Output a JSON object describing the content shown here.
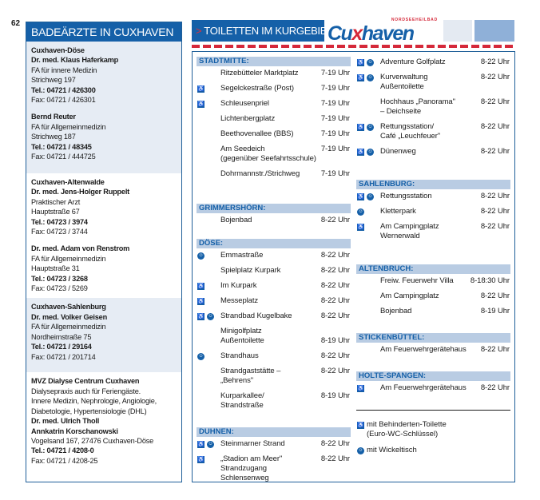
{
  "page_number": "62",
  "left_panel": {
    "title": "BADEÄRZTE IN CUXHAVEN",
    "groups": [
      {
        "shade": true,
        "blocks": [
          [
            {
              "t": "Cuxhaven-Döse",
              "b": true
            },
            {
              "t": "Dr. med. Klaus Haferkamp",
              "b": true
            },
            {
              "t": "FA für innere Medizin"
            },
            {
              "t": "Strichweg 197"
            },
            {
              "t": "Tel.: 04721 / 426300",
              "b": true
            },
            {
              "t": "Fax: 04721 / 426301"
            }
          ],
          [
            {
              "t": "Bernd Reuter",
              "b": true
            },
            {
              "t": "FA für Allgemeinmedizin"
            },
            {
              "t": "Strichweg 187"
            },
            {
              "t": "Tel.: 04721 / 48345",
              "b": true
            },
            {
              "t": "Fax: 04721 / 444725"
            }
          ]
        ]
      },
      {
        "shade": false,
        "blocks": [
          [
            {
              "t": "Cuxhaven-Altenwalde",
              "b": true
            },
            {
              "t": "Dr. med. Jens-Holger Ruppelt",
              "b": true
            },
            {
              "t": "Praktischer Arzt"
            },
            {
              "t": "Hauptstraße 67"
            },
            {
              "t": "Tel.: 04723 / 3974",
              "b": true
            },
            {
              "t": "Fax: 04723 / 3744"
            }
          ],
          [
            {
              "t": "Dr. med. Adam von Renstrom",
              "b": true
            },
            {
              "t": "FA für Allgemeinmedizin"
            },
            {
              "t": "Hauptstraße 31"
            },
            {
              "t": "Tel.: 04723 / 3268",
              "b": true
            },
            {
              "t": "Fax: 04723 / 5269"
            }
          ]
        ]
      },
      {
        "shade": true,
        "blocks": [
          [
            {
              "t": "Cuxhaven-Sahlenburg",
              "b": true
            },
            {
              "t": "Dr. med. Volker Geisen",
              "b": true
            },
            {
              "t": "FA für Allgemeinmedizin"
            },
            {
              "t": "Nordheimstraße 75"
            },
            {
              "t": "Tel.: 04721 / 29164",
              "b": true
            },
            {
              "t": "Fax: 04721 / 201714"
            }
          ]
        ]
      },
      {
        "shade": false,
        "blocks": [
          [
            {
              "t": "MVZ Dialyse Centrum Cuxhaven",
              "b": true
            },
            {
              "t": "Dialysepraxis auch für Feriengäste."
            },
            {
              "t": "Innere Medizin, Nephrologie, Angiologie,"
            },
            {
              "t": "Diabetologie, Hypertensiologie (DHL)"
            },
            {
              "t": "Dr. med. Ulrich Tholl",
              "b": true
            },
            {
              "t": "Annkatrin Korschanowski",
              "b": true
            },
            {
              "t": "Vogelsand 167, 27476 Cuxhaven-Döse"
            },
            {
              "t": "Tel.: 04721 / 4208-0",
              "b": true
            },
            {
              "t": "Fax: 04721 / 4208-25"
            }
          ]
        ]
      }
    ]
  },
  "right_panel": {
    "title_arrow": ">",
    "title": "TOILETTEN IM KURGEBIET",
    "logo_small": "NORDSEEHEILBAD",
    "logo_main_a": "Cu",
    "logo_main_x": "x",
    "logo_main_b": "haven",
    "colors": {
      "brand_blue": "#1560a8",
      "accent_red": "#d5293a",
      "section_bg": "#b9cce3"
    },
    "columns": [
      [
        {
          "name": "STADTMITTE:",
          "rows": [
            {
              "n": "Ritzebütteler Marktplatz",
              "t": "7-19 Uhr",
              "wc": false,
              "baby": false
            },
            {
              "n": "Segelckestraße (Post)",
              "t": "7-19 Uhr",
              "wc": true,
              "baby": false
            },
            {
              "n": "Schleusenpriel",
              "t": "7-19 Uhr",
              "wc": true,
              "baby": false
            },
            {
              "n": "Lichtenbergplatz",
              "t": "7-19 Uhr",
              "wc": false,
              "baby": false
            },
            {
              "n": "Beethovenallee (BBS)",
              "t": "7-19 Uhr",
              "wc": false,
              "baby": false
            },
            {
              "n": "Am Seedeich\n(gegenüber Seefahrtsschule)",
              "t": "7-19 Uhr",
              "wc": false,
              "baby": false
            },
            {
              "n": "Dohrmannstr./Strichweg",
              "t": "7-19 Uhr",
              "wc": false,
              "baby": false
            }
          ]
        },
        {
          "name": "GRIMMERSHÖRN:",
          "rows": [
            {
              "n": "Bojenbad",
              "t": "8-22 Uhr",
              "wc": false,
              "baby": false
            }
          ]
        },
        {
          "name": "DÖSE:",
          "rows": [
            {
              "n": "Emmastraße",
              "t": "8-22 Uhr",
              "wc": false,
              "baby": true
            },
            {
              "n": "Spielplatz Kurpark",
              "t": "8-22 Uhr",
              "wc": false,
              "baby": false
            },
            {
              "n": "Im Kurpark",
              "t": "8-22 Uhr",
              "wc": true,
              "baby": false
            },
            {
              "n": "Messeplatz",
              "t": "8-22 Uhr",
              "wc": true,
              "baby": false
            },
            {
              "n": "Strandbad Kugelbake",
              "t": "8-22 Uhr",
              "wc": true,
              "baby": true
            },
            {
              "n": "Minigolfplatz\nAußentoilette",
              "t": "8-19 Uhr",
              "wc": false,
              "baby": false,
              "bottom": true
            },
            {
              "n": "Strandhaus",
              "t": "8-22 Uhr",
              "wc": false,
              "baby": true
            },
            {
              "n": "Strandgaststätte –\n„Behrens\"",
              "t": "8-22 Uhr",
              "wc": false,
              "baby": false
            },
            {
              "n": "Kurparkallee/\nStrandstraße",
              "t": "8-19 Uhr",
              "wc": false,
              "baby": false
            }
          ]
        },
        {
          "name": "DUHNEN:",
          "rows": [
            {
              "n": "Steinmarner Strand",
              "t": "8-22 Uhr",
              "wc": true,
              "baby": true
            },
            {
              "n": "„Stadion am Meer\"\nStrandzugang\nSchlensenweg",
              "t": "8-22 Uhr",
              "wc": true,
              "baby": false
            }
          ]
        }
      ],
      [
        {
          "name": "",
          "rows": [
            {
              "n": "Adventure Golfplatz",
              "t": "8-22 Uhr",
              "wc": true,
              "baby": true
            },
            {
              "n": "Kurverwaltung\nAußentoilette",
              "t": "8-22 Uhr",
              "wc": true,
              "baby": true
            },
            {
              "n": "Hochhaus „Panorama\"\n– Deichseite",
              "t": "8-22 Uhr",
              "wc": false,
              "baby": false
            },
            {
              "n": "Rettungsstation/\nCafé „Leuchfeuer\"",
              "t": "8-22 Uhr",
              "wc": true,
              "baby": true
            },
            {
              "n": "Dünenweg",
              "t": "8-22 Uhr",
              "wc": true,
              "baby": true
            }
          ]
        },
        {
          "name": "SAHLENBURG:",
          "rows": [
            {
              "n": "Rettungsstation",
              "t": "8-22 Uhr",
              "wc": true,
              "baby": true
            },
            {
              "n": "Kletterpark",
              "t": "8-22 Uhr",
              "wc": false,
              "baby": true
            },
            {
              "n": "Am Campingplatz\nWernerwald",
              "t": "8-22 Uhr",
              "wc": true,
              "baby": false
            }
          ]
        },
        {
          "name": "ALTENBRUCH:",
          "rows": [
            {
              "n": "Freiw. Feuerwehr Villa",
              "t": "8-18:30 Uhr",
              "wc": false,
              "baby": false
            },
            {
              "n": "Am Campingplatz",
              "t": "8-22 Uhr",
              "wc": false,
              "baby": false
            },
            {
              "n": "Bojenbad",
              "t": "8-19 Uhr",
              "wc": false,
              "baby": false
            }
          ]
        },
        {
          "name": "STICKENBÜTTEL:",
          "rows": [
            {
              "n": "Am Feuerwehrgerätehaus",
              "t": "8-22 Uhr",
              "wc": false,
              "baby": false
            }
          ]
        },
        {
          "name": "HOLTE-SPANGEN:",
          "rows": [
            {
              "n": "Am Feuerwehrgerätehaus",
              "t": "8-22 Uhr",
              "wc": true,
              "baby": false
            }
          ]
        }
      ]
    ],
    "legend": [
      {
        "icon": "wheelchair-icon",
        "text": "mit Behinderten-Toilette\n(Euro-WC-Schlüssel)"
      },
      {
        "icon": "baby-changing-icon",
        "text": "mit Wickeltisch"
      }
    ]
  }
}
